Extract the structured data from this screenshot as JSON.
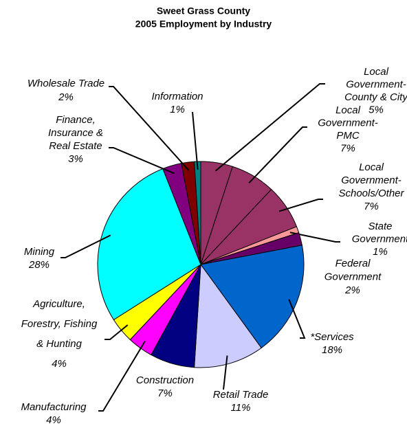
{
  "chart_data": {
    "type": "pie",
    "title": [
      "Sweet Grass County",
      "2005 Employment by Industry"
    ],
    "categories": [
      [
        "Local",
        "Government-",
        "County & City"
      ],
      [
        "Local",
        "Government-",
        "PMC"
      ],
      [
        "Local",
        "Government-",
        "Schools/Other"
      ],
      [
        "State",
        "Government"
      ],
      [
        "Federal",
        "Government"
      ],
      [
        "*Services"
      ],
      [
        "Retail Trade"
      ],
      [
        "Construction"
      ],
      [
        "Manufacturing"
      ],
      [
        "Agriculture,",
        "Forestry, Fishing",
        "& Hunting"
      ],
      [
        "Mining"
      ],
      [
        "Finance,",
        "Insurance &",
        "Real Estate"
      ],
      [
        "Wholesale Trade"
      ],
      [
        "Information"
      ]
    ],
    "values": [
      5,
      7,
      7,
      1,
      2,
      18,
      11,
      7,
      4,
      4,
      28,
      3,
      2,
      1
    ],
    "value_labels": [
      "5%",
      "7%",
      "7%",
      "1%",
      "2%",
      "18%",
      "11%",
      "7%",
      "4%",
      "4%",
      "28%",
      "3%",
      "2%",
      "1%"
    ],
    "colors": [
      "#993366",
      "#993366",
      "#993366",
      "#FF9999",
      "#660066",
      "#0066CC",
      "#CCCCFF",
      "#000080",
      "#FF00FF",
      "#FFFF00",
      "#00FFFF",
      "#800080",
      "#800000",
      "#008080"
    ]
  }
}
